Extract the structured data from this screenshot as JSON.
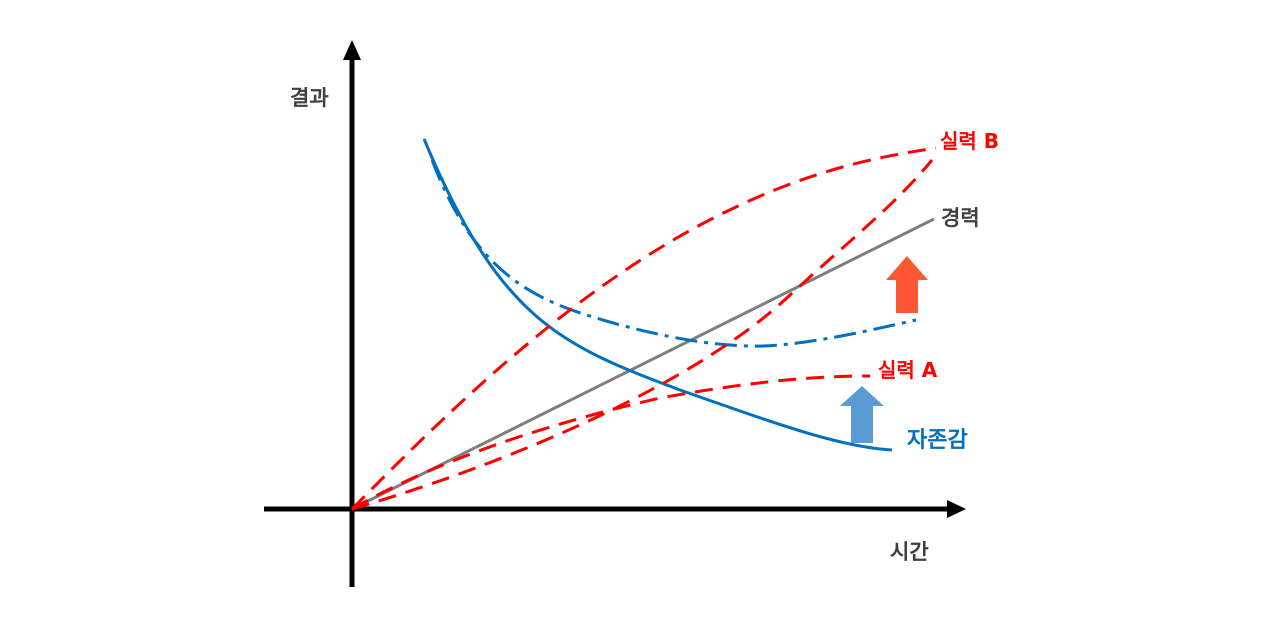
{
  "axes": {
    "y_label": "결과",
    "x_label": "시간"
  },
  "series": {
    "skill_b": {
      "label": "실력 B",
      "color": "#ff0000"
    },
    "career": {
      "label": "경력",
      "color": "#7f7f7f"
    },
    "skill_a": {
      "label": "실력 A",
      "color": "#ff0000"
    },
    "self_esteem": {
      "label": "자존감",
      "color": "#0070c0"
    }
  },
  "arrows": {
    "upper": {
      "direction": "up",
      "color": "#ff5733"
    },
    "lower": {
      "direction": "up",
      "color": "#5b9bd5"
    }
  }
}
